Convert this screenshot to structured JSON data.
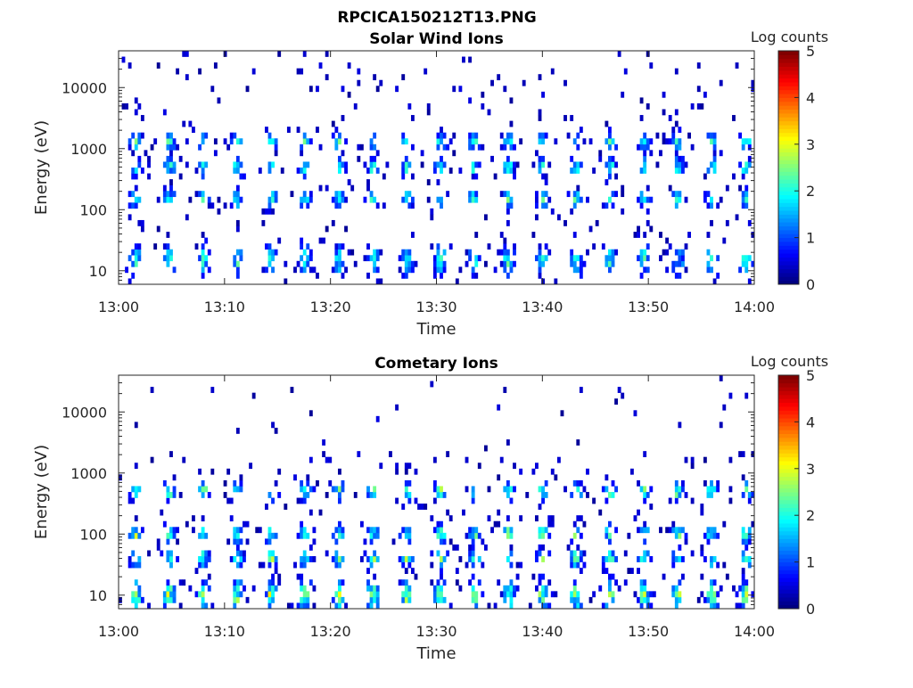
{
  "figure": {
    "title": "RPCICA150212T13.PNG"
  },
  "chart_data": [
    {
      "type": "heatmap",
      "title": "Solar Wind Ions",
      "xlabel": "Time",
      "ylabel": "Energy (eV)",
      "x_ticks": [
        "13:00",
        "13:10",
        "13:20",
        "13:30",
        "13:40",
        "13:50",
        "14:00"
      ],
      "x_range": [
        "13:00",
        "14:00"
      ],
      "y_scale": "log",
      "y_ticks": [
        "10",
        "100",
        "1000",
        "10000"
      ],
      "y_range": [
        6,
        40000
      ],
      "colorbar": {
        "label": "Log counts",
        "ticks": [
          "0",
          "1",
          "2",
          "3",
          "4",
          "5"
        ],
        "range": [
          0,
          5
        ],
        "colormap": "jet"
      },
      "features": {
        "band_energies_eV": [
          1300,
          500,
          150,
          15
        ],
        "pulse_period_min": 3.2,
        "peak_log_counts": 2.3
      }
    },
    {
      "type": "heatmap",
      "title": "Cometary Ions",
      "xlabel": "Time",
      "ylabel": "Energy (eV)",
      "x_ticks": [
        "13:00",
        "13:10",
        "13:20",
        "13:30",
        "13:40",
        "13:50",
        "14:00"
      ],
      "x_range": [
        "13:00",
        "14:00"
      ],
      "y_scale": "log",
      "y_ticks": [
        "10",
        "100",
        "1000",
        "10000"
      ],
      "y_range": [
        6,
        40000
      ],
      "colorbar": {
        "label": "Log counts",
        "ticks": [
          "0",
          "1",
          "2",
          "3",
          "4",
          "5"
        ],
        "range": [
          0,
          5
        ],
        "colormap": "jet"
      },
      "features": {
        "band_energies_eV": [
          500,
          100,
          40,
          10
        ],
        "pulse_period_min": 3.2,
        "peak_log_counts": 2.7
      }
    }
  ]
}
